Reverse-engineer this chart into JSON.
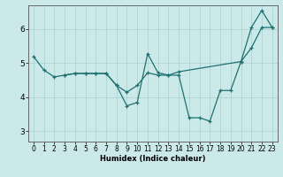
{
  "xlabel": "Humidex (Indice chaleur)",
  "xlim": [
    -0.5,
    23.5
  ],
  "ylim": [
    2.7,
    6.7
  ],
  "yticks": [
    3,
    4,
    5,
    6
  ],
  "xticks": [
    0,
    1,
    2,
    3,
    4,
    5,
    6,
    7,
    8,
    9,
    10,
    11,
    12,
    13,
    14,
    15,
    16,
    17,
    18,
    19,
    20,
    21,
    22,
    23
  ],
  "bg_color": "#cce9ea",
  "grid_color": "#afd4d4",
  "line_color": "#1e7070",
  "lines": [
    {
      "x": [
        0,
        1,
        2,
        3,
        4,
        5,
        6,
        7,
        8,
        9,
        10,
        11,
        12,
        13,
        14,
        20,
        21,
        22,
        23
      ],
      "y": [
        5.2,
        4.8,
        4.6,
        4.65,
        4.7,
        4.7,
        4.7,
        4.7,
        4.35,
        3.75,
        3.85,
        5.28,
        4.72,
        4.65,
        4.75,
        5.05,
        6.05,
        6.55,
        6.05
      ]
    },
    {
      "x": [
        3,
        4,
        5,
        6,
        7,
        8,
        9,
        10,
        11,
        12,
        13,
        14,
        15,
        16,
        17,
        18,
        19,
        20,
        21,
        22,
        23
      ],
      "y": [
        4.65,
        4.7,
        4.7,
        4.7,
        4.7,
        4.35,
        4.15,
        4.35,
        4.72,
        4.65,
        4.65,
        4.65,
        3.4,
        3.4,
        3.3,
        4.2,
        4.2,
        5.05,
        5.45,
        6.05,
        6.05
      ]
    }
  ]
}
